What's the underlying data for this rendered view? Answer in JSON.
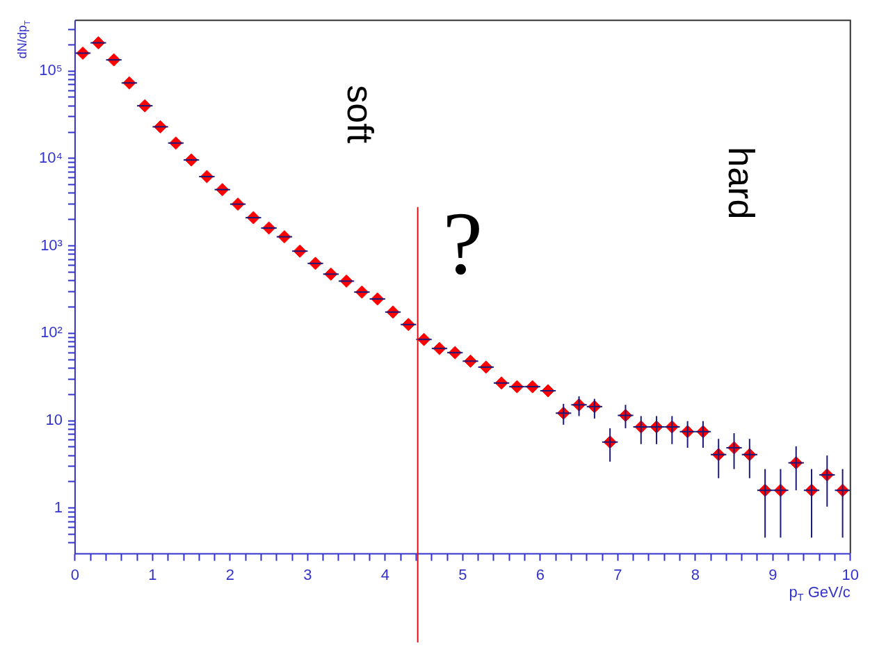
{
  "chart_data": {
    "type": "scatter",
    "xlabel": "p$_{T}$ GeV/c",
    "ylabel": "dN/dp$_{T}$",
    "x": [
      0.1,
      0.3,
      0.5,
      0.7,
      0.9,
      1.1,
      1.3,
      1.5,
      1.7,
      1.9,
      2.1,
      2.3,
      2.5,
      2.7,
      2.9,
      3.1,
      3.3,
      3.5,
      3.7,
      3.9,
      4.1,
      4.3,
      4.5,
      4.7,
      4.9,
      5.1,
      5.3,
      5.5,
      5.7,
      5.9,
      6.1,
      6.3,
      6.5,
      6.7,
      6.9,
      7.1,
      7.3,
      7.5,
      7.7,
      7.9,
      8.1,
      8.3,
      8.5,
      8.7,
      8.9,
      9.1,
      9.3,
      9.5,
      9.7,
      9.9
    ],
    "series": [
      {
        "color": "#ff0000",
        "values": [
          160000,
          210000,
          134000,
          73000,
          40000,
          23000,
          15000,
          9600,
          6200,
          4400,
          3000,
          2100,
          1600,
          1270,
          870,
          630,
          475,
          395,
          296,
          247,
          175,
          126,
          85,
          67,
          60,
          48,
          41,
          27,
          24.5,
          24.5,
          22,
          12.2,
          15.2,
          14.5,
          5.7,
          11.5,
          8.5,
          8.5,
          8.5,
          7.5,
          7.5,
          4.1,
          4.9,
          4.1,
          1.6,
          1.6,
          3.3,
          1.6,
          2.4,
          1.6
        ],
        "errors": [
          null,
          null,
          null,
          null,
          null,
          null,
          null,
          null,
          null,
          null,
          null,
          null,
          null,
          null,
          null,
          null,
          null,
          null,
          null,
          null,
          null,
          null,
          null,
          null,
          null,
          null,
          null,
          null,
          null,
          null,
          null,
          [
            9.0,
            15.6
          ],
          [
            11.3,
            19.0
          ],
          [
            10.6,
            17.8
          ],
          [
            3.4,
            8.2
          ],
          [
            8.2,
            15.2
          ],
          [
            5.4,
            11.3
          ],
          [
            5.4,
            11.3
          ],
          [
            5.4,
            11.3
          ],
          [
            4.9,
            9.9
          ],
          [
            4.9,
            9.9
          ],
          [
            2.2,
            6.2
          ],
          [
            2.8,
            7.2
          ],
          [
            2.2,
            6.2
          ],
          [
            0.46,
            2.8
          ],
          [
            0.46,
            2.8
          ],
          [
            1.6,
            5.1
          ],
          [
            0.46,
            2.8
          ],
          [
            1.04,
            4.0
          ],
          [
            0.46,
            2.8
          ]
        ],
        "xerrors": [
          0.1,
          0.1,
          0.1,
          0.1,
          0.1,
          0.1,
          0.1,
          0.1,
          0.1,
          0.1,
          0.1,
          0.1,
          0.1,
          0.1,
          0.1,
          0.1,
          0.1,
          0.1,
          0.1,
          0.1,
          0.1,
          0.1,
          0.1,
          0.1,
          0.1,
          0.1,
          0.1,
          0.1,
          0.1,
          0.1,
          0.1,
          0.1,
          0.1,
          0.1,
          0.1,
          0.1,
          0.1,
          0.1,
          0.1,
          0.1,
          0.1,
          0.1,
          0.1,
          0.1,
          0.1,
          0.1,
          0.1,
          0.1,
          0.1,
          0.1
        ]
      }
    ],
    "xlim": [
      0,
      10
    ],
    "ylim": [
      0.3,
      380000
    ],
    "xticks": [
      0,
      {
        "value": 0.2,
        "label": null
      },
      {
        "value": 0.4,
        "label": null
      },
      {
        "value": 0.6,
        "label": null
      },
      {
        "value": 0.8,
        "label": null
      },
      1,
      {
        "value": 1.2,
        "label": null
      },
      {
        "value": 1.4,
        "label": null
      },
      {
        "value": 1.6,
        "label": null
      },
      {
        "value": 1.8,
        "label": null
      },
      2,
      {
        "value": 2.2,
        "label": null
      },
      {
        "value": 2.4,
        "label": null
      },
      {
        "value": 2.6,
        "label": null
      },
      {
        "value": 2.8,
        "label": null
      },
      3,
      {
        "value": 3.2,
        "label": null
      },
      {
        "value": 3.4,
        "label": null
      },
      {
        "value": 3.6,
        "label": null
      },
      {
        "value": 3.8,
        "label": null
      },
      4,
      {
        "value": 4.2,
        "label": null
      },
      {
        "value": 4.4,
        "label": null
      },
      {
        "value": 4.6,
        "label": null
      },
      {
        "value": 4.8,
        "label": null
      },
      5,
      {
        "value": 5.2,
        "label": null
      },
      {
        "value": 5.4,
        "label": null
      },
      {
        "value": 5.6,
        "label": null
      },
      {
        "value": 5.8,
        "label": null
      },
      6,
      {
        "value": 6.2,
        "label": null
      },
      {
        "value": 6.4,
        "label": null
      },
      {
        "value": 6.6,
        "label": null
      },
      {
        "value": 6.8,
        "label": null
      },
      7,
      {
        "value": 7.2,
        "label": null
      },
      {
        "value": 7.4,
        "label": null
      },
      {
        "value": 7.6,
        "label": null
      },
      {
        "value": 7.8,
        "label": null
      },
      8,
      {
        "value": 8.2,
        "label": null
      },
      {
        "value": 8.4,
        "label": null
      },
      {
        "value": 8.6,
        "label": null
      },
      {
        "value": 8.8,
        "label": null
      },
      9,
      {
        "value": 9.2,
        "label": null
      },
      {
        "value": 9.4,
        "label": null
      },
      {
        "value": 9.6,
        "label": null
      },
      {
        "value": 9.8,
        "label": null
      },
      10
    ],
    "yticks": [
      {
        "value": 0.4,
        "label": null
      },
      {
        "value": 0.5,
        "label": null
      },
      {
        "value": 0.6,
        "label": null
      },
      {
        "value": 0.7,
        "label": null
      },
      {
        "value": 0.8,
        "label": null
      },
      {
        "value": 0.9,
        "label": null
      },
      1,
      {
        "value": 2,
        "label": null
      },
      {
        "value": 3,
        "label": null
      },
      {
        "value": 4,
        "label": null
      },
      {
        "value": 5,
        "label": null
      },
      {
        "value": 6,
        "label": null
      },
      {
        "value": 7,
        "label": null
      },
      {
        "value": 8,
        "label": null
      },
      {
        "value": 9,
        "label": null
      },
      10,
      {
        "value": 20,
        "label": null
      },
      {
        "value": 30,
        "label": null
      },
      {
        "value": 40,
        "label": null
      },
      {
        "value": 50,
        "label": null
      },
      {
        "value": 60,
        "label": null
      },
      {
        "value": 70,
        "label": null
      },
      {
        "value": 80,
        "label": null
      },
      {
        "value": 90,
        "label": null
      },
      {
        "value": 100,
        "label": "10²"
      },
      {
        "value": 200,
        "label": null
      },
      {
        "value": 300,
        "label": null
      },
      {
        "value": 400,
        "label": null
      },
      {
        "value": 500,
        "label": null
      },
      {
        "value": 600,
        "label": null
      },
      {
        "value": 700,
        "label": null
      },
      {
        "value": 800,
        "label": null
      },
      {
        "value": 900,
        "label": null
      },
      {
        "value": 1000,
        "label": "10³"
      },
      {
        "value": 2000,
        "label": null
      },
      {
        "value": 3000,
        "label": null
      },
      {
        "value": 4000,
        "label": null
      },
      {
        "value": 5000,
        "label": null
      },
      {
        "value": 6000,
        "label": null
      },
      {
        "value": 7000,
        "label": null
      },
      {
        "value": 8000,
        "label": null
      },
      {
        "value": 9000,
        "label": null
      },
      {
        "value": 10000,
        "label": "10⁴"
      },
      {
        "value": 20000,
        "label": null
      },
      {
        "value": 30000,
        "label": null
      },
      {
        "value": 40000,
        "label": null
      },
      {
        "value": 50000,
        "label": null
      },
      {
        "value": 60000,
        "label": null
      },
      {
        "value": 70000,
        "label": null
      },
      {
        "value": 80000,
        "label": null
      },
      {
        "value": 90000,
        "label": null
      },
      {
        "value": 100000,
        "label": "10⁵"
      },
      {
        "value": 200000,
        "label": null
      },
      {
        "value": 300000,
        "label": null
      }
    ],
    "log": "y",
    "marker": "diamond",
    "grid": false,
    "legend": false,
    "ref_lines": [
      {
        "axis": "x",
        "value": 4.42,
        "color": "#dd1111"
      }
    ],
    "annotations": [
      "soft",
      "?",
      "hard"
    ]
  }
}
